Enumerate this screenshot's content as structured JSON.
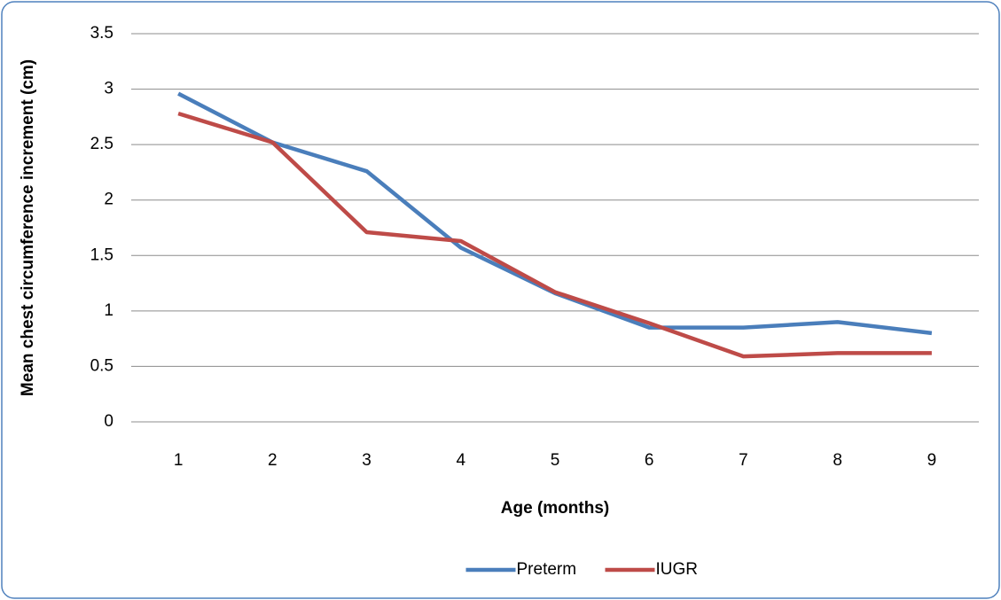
{
  "chart_data": {
    "type": "line",
    "x_label": "Age (months)",
    "y_label": "Mean chest circumference increment (cm)",
    "categories": [
      "1",
      "2",
      "3",
      "4",
      "5",
      "6",
      "7",
      "8",
      "9"
    ],
    "series": [
      {
        "name": "Preterm",
        "color": "#4a7ebb",
        "values": [
          2.96,
          2.52,
          2.26,
          1.57,
          1.16,
          0.85,
          0.85,
          0.9,
          0.8
        ]
      },
      {
        "name": "IUGR",
        "color": "#be4b48",
        "values": [
          2.78,
          2.52,
          1.71,
          1.63,
          1.17,
          0.89,
          0.59,
          0.62,
          0.62
        ]
      }
    ],
    "ylim": [
      0,
      3.5
    ],
    "yticks": [
      0,
      0.5,
      1,
      1.5,
      2,
      2.5,
      3,
      3.5
    ],
    "grid": true,
    "legend": "bottom"
  }
}
